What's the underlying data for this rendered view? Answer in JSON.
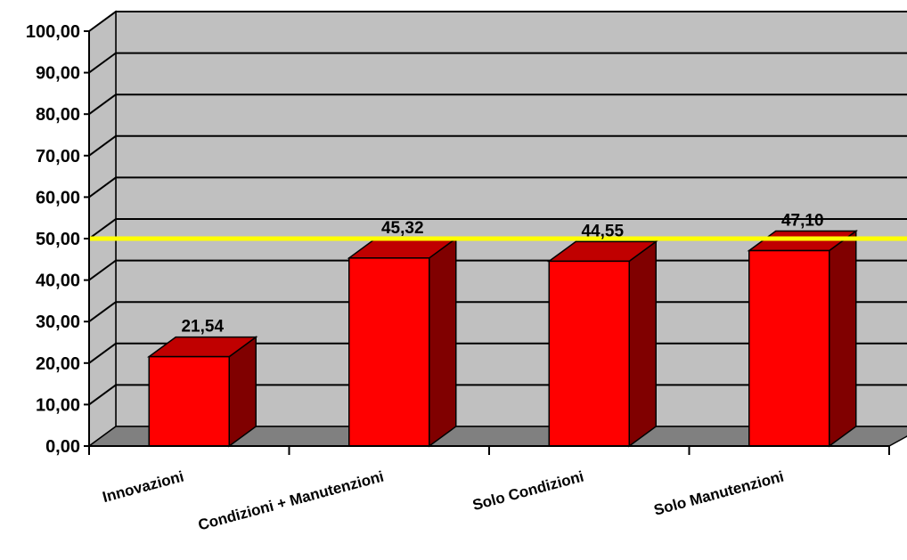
{
  "chart_data": {
    "type": "bar",
    "categories": [
      "Innovazioni",
      "Condizioni + Manutenzioni",
      "Solo Condizioni",
      "Solo Manutenzioni"
    ],
    "values": [
      21.54,
      45.32,
      44.55,
      47.1
    ],
    "data_labels": [
      "21,54",
      "45,32",
      "44,55",
      "47,10"
    ],
    "y_tick_labels": [
      "0,00",
      "10,00",
      "20,00",
      "30,00",
      "40,00",
      "50,00",
      "60,00",
      "70,00",
      "80,00",
      "90,00",
      "100,00"
    ],
    "ylim": [
      0,
      100
    ],
    "reference_line": 50,
    "grid": true,
    "three_d": true,
    "title": "",
    "xlabel": "",
    "ylabel": "",
    "colors": {
      "bar_front": "#ff0000",
      "bar_top": "#c00000",
      "bar_side": "#800000",
      "wall": "#c0c0c0",
      "floor": "#808080",
      "reference_line": "#ffff00",
      "gridline": "#000000"
    }
  }
}
